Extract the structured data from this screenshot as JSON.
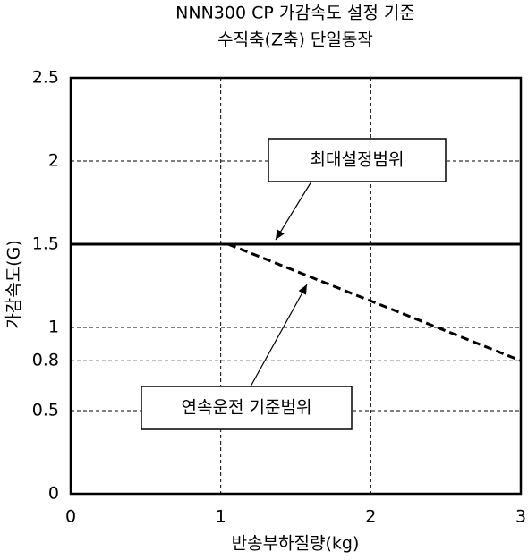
{
  "chart_data": {
    "type": "line",
    "title": "NNN300 CP 가감속도 설정 기준",
    "subtitle": "수직축(Z축) 단일동작",
    "x_label": "반송부하질량(kg)",
    "y_label": "가감속도(G)",
    "xlim": [
      0,
      3
    ],
    "xticks": [
      0,
      1,
      2,
      3
    ],
    "ylim": [
      0,
      2.5
    ],
    "yticks": [
      0,
      0.5,
      0.8,
      1,
      1.5,
      2,
      2.5
    ],
    "grid": true,
    "series": [
      {
        "name": "최대설정범위",
        "color": "#000000",
        "style": "solid",
        "x": [
          0,
          3
        ],
        "values": [
          1.5,
          1.5
        ]
      },
      {
        "name": "연속운전 기준범위",
        "color": "#000000",
        "style": "dashed",
        "x": [
          1.05,
          3
        ],
        "values": [
          1.5,
          0.8
        ]
      }
    ]
  }
}
